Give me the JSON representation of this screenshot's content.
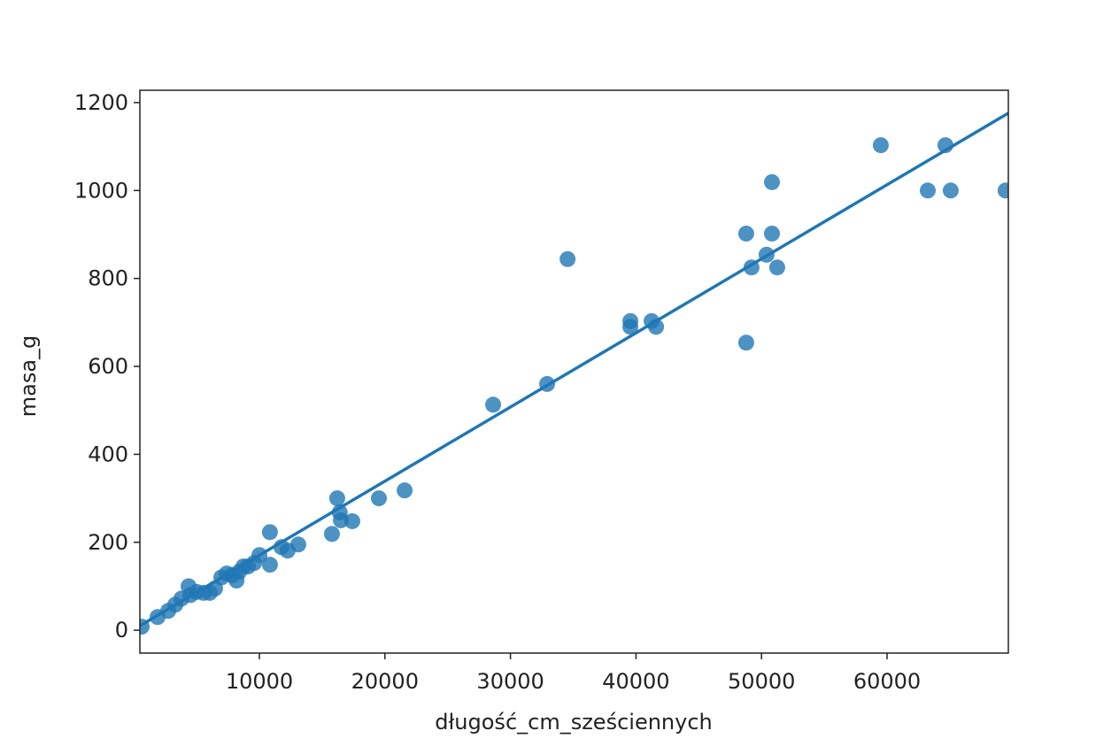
{
  "chart_data": {
    "type": "scatter",
    "x_label": "długość_cm_sześciennych",
    "y_label": "masa_g",
    "color": "#1f77b4",
    "xlim": [
      480,
      69660
    ],
    "ylim": [
      -52,
      1228
    ],
    "xticks": [
      10000,
      20000,
      30000,
      40000,
      50000,
      60000
    ],
    "yticks": [
      0,
      200,
      400,
      600,
      800,
      1000,
      1200
    ],
    "x": [
      620,
      1890,
      2740,
      3300,
      3790,
      4360,
      4500,
      5000,
      5560,
      6050,
      6470,
      6970,
      7400,
      7820,
      8180,
      8390,
      8730,
      9090,
      9580,
      10000,
      10840,
      10840,
      11760,
      12250,
      13100,
      15780,
      16200,
      16400,
      16490,
      17400,
      19520,
      21570,
      28620,
      32920,
      34550,
      39550,
      39550,
      41240,
      41600,
      48780,
      48780,
      49200,
      50400,
      50830,
      50830,
      51250,
      59500,
      63240,
      64650,
      65070,
      69440
    ],
    "values": [
      8,
      30,
      44,
      58,
      72,
      100,
      80,
      87,
      85,
      85,
      95,
      120,
      129,
      125,
      113,
      133,
      145,
      145,
      153,
      171,
      223,
      149,
      189,
      181,
      195,
      219,
      300,
      268,
      250,
      248,
      300,
      318,
      513,
      560,
      844,
      703,
      690,
      703,
      690,
      902,
      654,
      825,
      854,
      1019,
      902,
      825,
      1103,
      1000,
      1103,
      1000,
      1000
    ],
    "fit_line": {
      "x": [
        480,
        69660
      ],
      "values": [
        10,
        1176
      ]
    }
  }
}
